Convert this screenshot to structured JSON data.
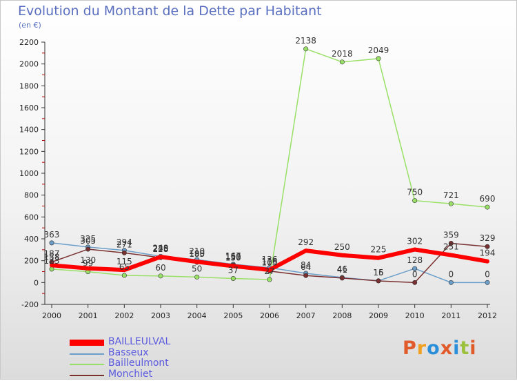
{
  "header": {
    "title": "Evolution du Montant de la Dette par Habitant",
    "unit": "(en €)"
  },
  "logo": {
    "text": "Proxiti",
    "colors": [
      "#e05a2a",
      "#f0a020",
      "#2a8fd8",
      "#e05a2a",
      "#2a8fd8",
      "#9bc03a",
      "#e05a2a"
    ]
  },
  "chart_data": {
    "type": "line",
    "title": "Evolution du Montant de la Dette par Habitant",
    "ylabel": "(en €)",
    "xlabel": "",
    "ylim": [
      -200,
      2200
    ],
    "ytick_step": 200,
    "grid": false,
    "legend_position": "bottom-left",
    "x": [
      2000,
      2001,
      2002,
      2003,
      2004,
      2005,
      2006,
      2007,
      2008,
      2009,
      2010,
      2011,
      2012
    ],
    "series": [
      {
        "name": "BAILLEULVAL",
        "color": "#ff0000",
        "width": 6,
        "values": [
          158,
          130,
          115,
          235,
          190,
          150,
          116,
          292,
          250,
          225,
          302,
          251,
          194
        ],
        "labels": [
          "158",
          "130",
          "115",
          "235",
          "190",
          "150",
          "116",
          "292",
          "250",
          "225",
          "302",
          "251",
          "194"
        ]
      },
      {
        "name": "Basseux",
        "color": "#6b9ec8",
        "width": 1.5,
        "values": [
          363,
          325,
          294,
          240,
          210,
          167,
          136,
          84,
          46,
          16,
          128,
          0,
          0
        ],
        "labels": [
          "363",
          "325",
          "294",
          "240",
          "210",
          "167",
          "136",
          "84",
          "46",
          "16",
          "128",
          "0",
          "0"
        ]
      },
      {
        "name": "Bailleulmont",
        "color": "#99e066",
        "width": 1.5,
        "values": [
          123,
          99,
          65,
          60,
          50,
          37,
          27,
          2138,
          2018,
          2049,
          750,
          721,
          690
        ],
        "labels": [
          "123",
          "99",
          "65",
          "60",
          "50",
          "37",
          "27",
          "2138",
          "2018",
          "2049",
          "750",
          "721",
          "690"
        ]
      },
      {
        "name": "Monchiet",
        "color": "#7a3030",
        "width": 1.5,
        "values": [
          187,
          305,
          271,
          228,
          185,
          159,
          105,
          64,
          41,
          15,
          0,
          359,
          329
        ],
        "labels": [
          "187",
          "305",
          "271",
          "228",
          "185",
          "159",
          "105",
          "64",
          "41",
          "15",
          "0",
          "359",
          "329"
        ]
      }
    ]
  }
}
